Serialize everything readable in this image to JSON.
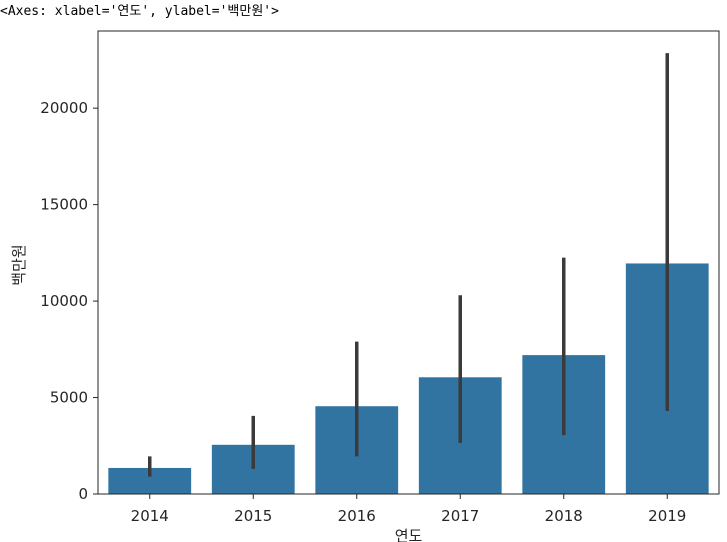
{
  "header": {
    "repr": "<Axes: xlabel='연도', ylabel='백만원'>"
  },
  "chart_data": {
    "type": "bar",
    "title": "",
    "xlabel": "연도",
    "ylabel": "백만원",
    "categories": [
      "2014",
      "2015",
      "2016",
      "2017",
      "2018",
      "2019"
    ],
    "values": [
      1350,
      2550,
      4550,
      6050,
      7200,
      11950
    ],
    "error_bars": [
      [
        900,
        1950
      ],
      [
        1300,
        4050
      ],
      [
        1950,
        7900
      ],
      [
        2650,
        10300
      ],
      [
        3050,
        12250
      ],
      [
        4300,
        22850
      ]
    ],
    "ylim": [
      0,
      24000
    ],
    "yticks": [
      0,
      5000,
      10000,
      15000,
      20000
    ],
    "ytick_labels": [
      "0",
      "5000",
      "10000",
      "15000",
      "20000"
    ],
    "bar_color": "#3274a1",
    "errorbar_color": "#3a3a3a",
    "grid": false,
    "legend": "none"
  }
}
